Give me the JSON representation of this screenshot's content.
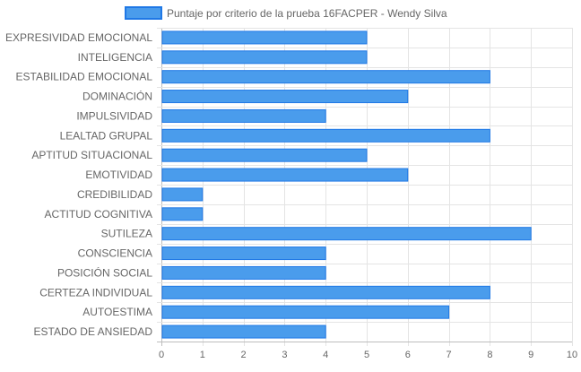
{
  "chart_data": {
    "type": "bar",
    "orientation": "horizontal",
    "title": "",
    "xlabel": "",
    "ylabel": "",
    "categories": [
      "EXPRESIVIDAD EMOCIONAL",
      "INTELIGENCIA",
      "ESTABILIDAD EMOCIONAL",
      "DOMINACIÓN",
      "IMPULSIVIDAD",
      "LEALTAD GRUPAL",
      "APTITUD SITUACIONAL",
      "EMOTIVIDAD",
      "CREDIBILIDAD",
      "ACTITUD COGNITIVA",
      "SUTILEZA",
      "CONSCIENCIA",
      "POSICIÓN SOCIAL",
      "CERTEZA INDIVIDUAL",
      "AUTOESTIMA",
      "ESTADO DE ANSIEDAD"
    ],
    "series": [
      {
        "name": "Puntaje por criterio de la prueba 16FACPER - Wendy Silva",
        "values": [
          5,
          5,
          8,
          6,
          4,
          8,
          5,
          6,
          1,
          1,
          9,
          4,
          4,
          8,
          7,
          4
        ],
        "color": "#4a9cec",
        "border_color": "#1f78e6"
      }
    ],
    "xlim": [
      0,
      10
    ],
    "x_ticks": [
      0,
      1,
      2,
      3,
      4,
      5,
      6,
      7,
      8,
      9,
      10
    ],
    "grid": true,
    "legend_position": "top"
  }
}
